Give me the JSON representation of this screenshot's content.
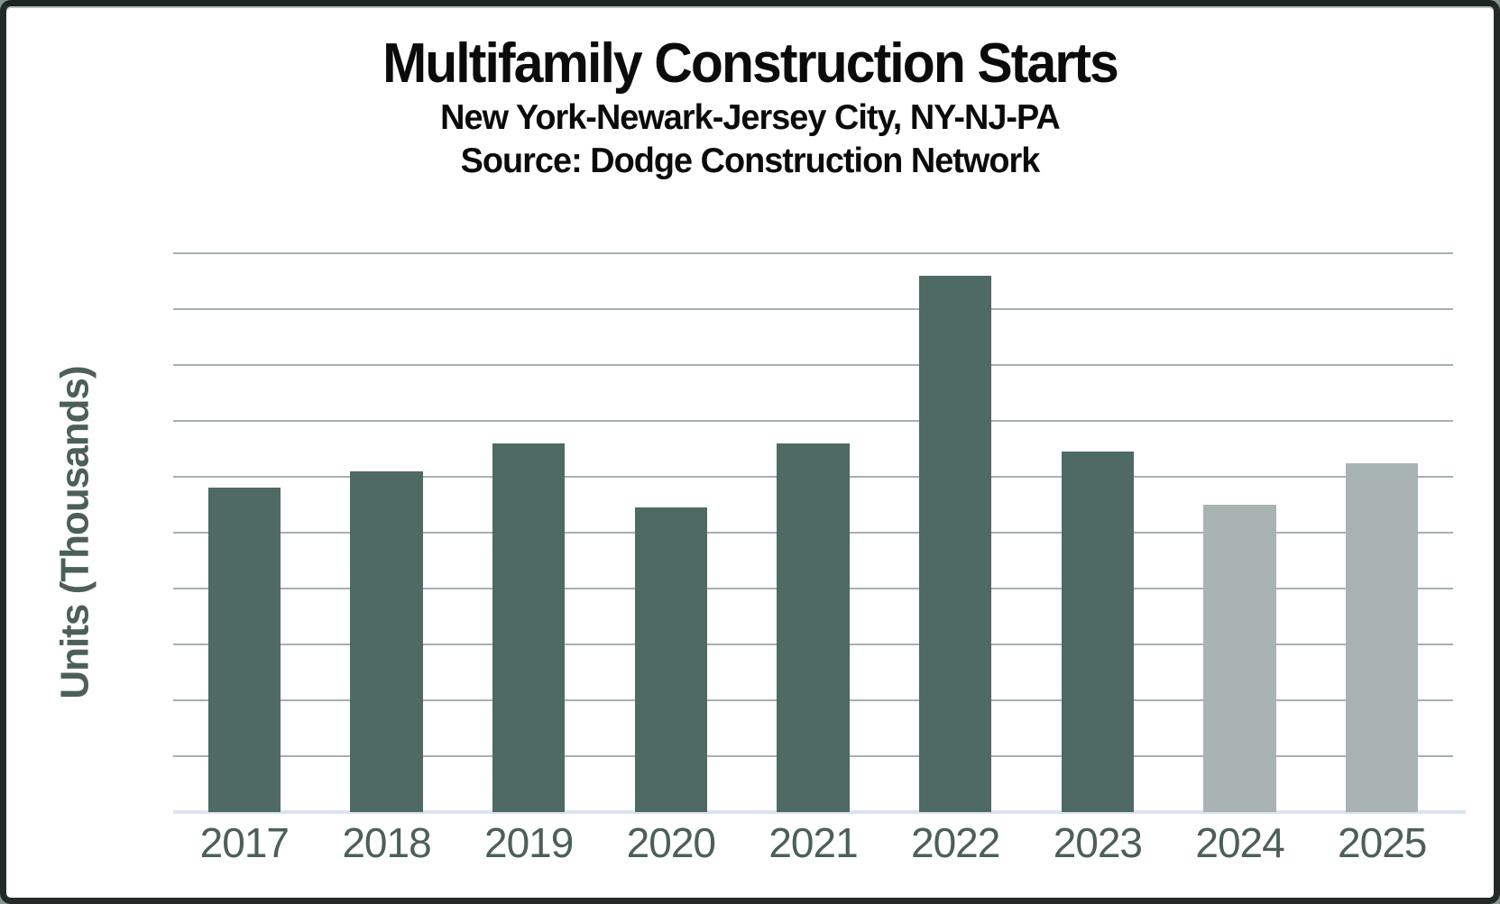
{
  "header": {
    "title": "Multifamily Construction Starts",
    "subtitle": "New York-Newark-Jersey City, NY-NJ-PA",
    "source": "Source: Dodge Construction Network"
  },
  "chart_data": {
    "type": "bar",
    "title": "Multifamily Construction Starts",
    "subtitle": "New York-Newark-Jersey City, NY-NJ-PA",
    "source": "Source: Dodge Construction Network",
    "xlabel": "",
    "ylabel": "Units (Thousands)",
    "categories": [
      "2017",
      "2018",
      "2019",
      "2020",
      "2021",
      "2022",
      "2023",
      "2024",
      "2025"
    ],
    "values": [
      11.6,
      12.2,
      13.2,
      10.9,
      13.2,
      19.2,
      12.9,
      11.0,
      12.5
    ],
    "bar_styles": [
      "actual",
      "actual",
      "actual",
      "actual",
      "actual",
      "actual",
      "actual",
      "projected",
      "projected"
    ],
    "ylim": [
      0,
      20
    ],
    "yticks": [
      0,
      2,
      4,
      6,
      8,
      10,
      12,
      14,
      16,
      18,
      20
    ],
    "grid": true,
    "legend_position": "none",
    "colors": {
      "actual_bar": "#4f6963",
      "projected_bar": "#a9b4b2",
      "gridline": "#a6b1af",
      "baseline": "#d9e3f1",
      "axis_text": "#4c5f5a",
      "title_text": "#0b0b0b"
    }
  }
}
